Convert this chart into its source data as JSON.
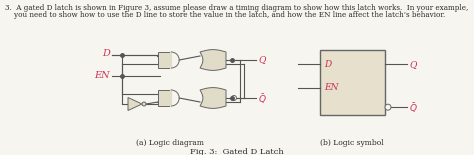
{
  "title_text": "3.  A gated D latch is shown in Figure 3, assume please draw a timing diagram to show how this latch works.  In your example,",
  "title_line2": "    you need to show how to use the D line to store the value in the latch, and how the EN line affect the latch’s behavior.",
  "caption_a": "(a) Logic diagram",
  "caption_b": "(b) Logic symbol",
  "fig_caption": "Fig. 3:  Gated D Latch",
  "bg_color": "#f7f5ef",
  "text_color": "#2a2a2a",
  "wire_color": "#555555",
  "gate_fill": "#e0dcc8",
  "gate_edge": "#666666",
  "label_d": "D",
  "label_en": "EN",
  "label_q": "Q",
  "label_qbar": "$\\bar{Q}$",
  "pink": "#cc3355"
}
